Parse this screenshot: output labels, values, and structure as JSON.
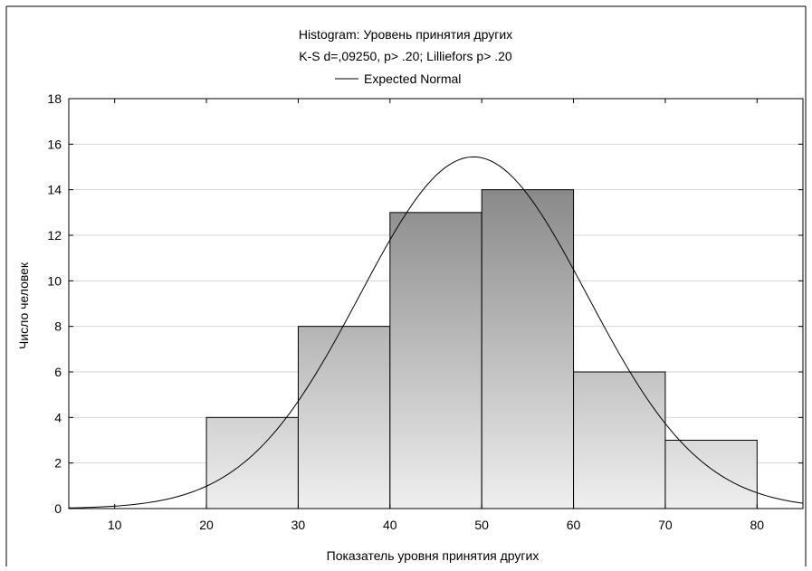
{
  "chart_data": {
    "type": "bar",
    "title": "Histogram: Уровень принятия других",
    "subtitle": "K-S d=,09250, p> .20; Lilliefors p> .20",
    "legend": [
      {
        "label": "Expected Normal",
        "marker": "line",
        "color": "#000000"
      }
    ],
    "legend_position": "top-center",
    "xlabel": "Показатель уровня принятия других",
    "ylabel": "Число человек",
    "xlim": [
      5,
      85
    ],
    "ylim": [
      0,
      18
    ],
    "x_ticks": [
      10,
      20,
      30,
      40,
      50,
      60,
      70,
      80
    ],
    "x_tick_labels": [
      "10",
      "20",
      "30",
      "40",
      "50",
      "60",
      "70",
      "80"
    ],
    "y_ticks": [
      0,
      2,
      4,
      6,
      8,
      10,
      12,
      14,
      16,
      18
    ],
    "y_tick_labels": [
      "0",
      "2",
      "4",
      "6",
      "8",
      "10",
      "12",
      "14",
      "16",
      "18"
    ],
    "grid": "horizontal",
    "bins": [
      {
        "x0": 20,
        "x1": 30,
        "count": 4
      },
      {
        "x0": 30,
        "x1": 40,
        "count": 8
      },
      {
        "x0": 40,
        "x1": 50,
        "count": 13
      },
      {
        "x0": 50,
        "x1": 60,
        "count": 14
      },
      {
        "x0": 60,
        "x1": 70,
        "count": 6
      },
      {
        "x0": 70,
        "x1": 80,
        "count": 3
      }
    ],
    "normal_curve": {
      "mean": 49.1,
      "sd": 12.4,
      "scale_n": 48,
      "bin_width": 10
    },
    "colors": {
      "bar_light": "#efefef",
      "bar_dark": "#808080",
      "bar_stroke": "#000000",
      "curve": "#000000",
      "grid": "#d4d4d4"
    }
  }
}
